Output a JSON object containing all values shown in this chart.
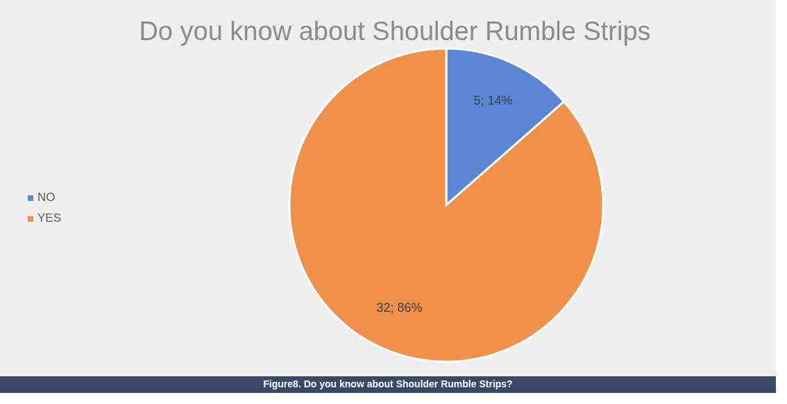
{
  "chart_data": {
    "type": "pie",
    "title": "Do you know about Shoulder Rumble Strips",
    "categories": [
      "NO",
      "YES"
    ],
    "values": [
      5,
      32
    ],
    "colors": [
      "#5a86d6",
      "#f0904a"
    ],
    "value_labels": [
      "5; 14%",
      "32; 86%"
    ],
    "legend": "left",
    "annotations": [
      "Figure8. Do you know about Shoulder Rumble Strips?"
    ]
  }
}
